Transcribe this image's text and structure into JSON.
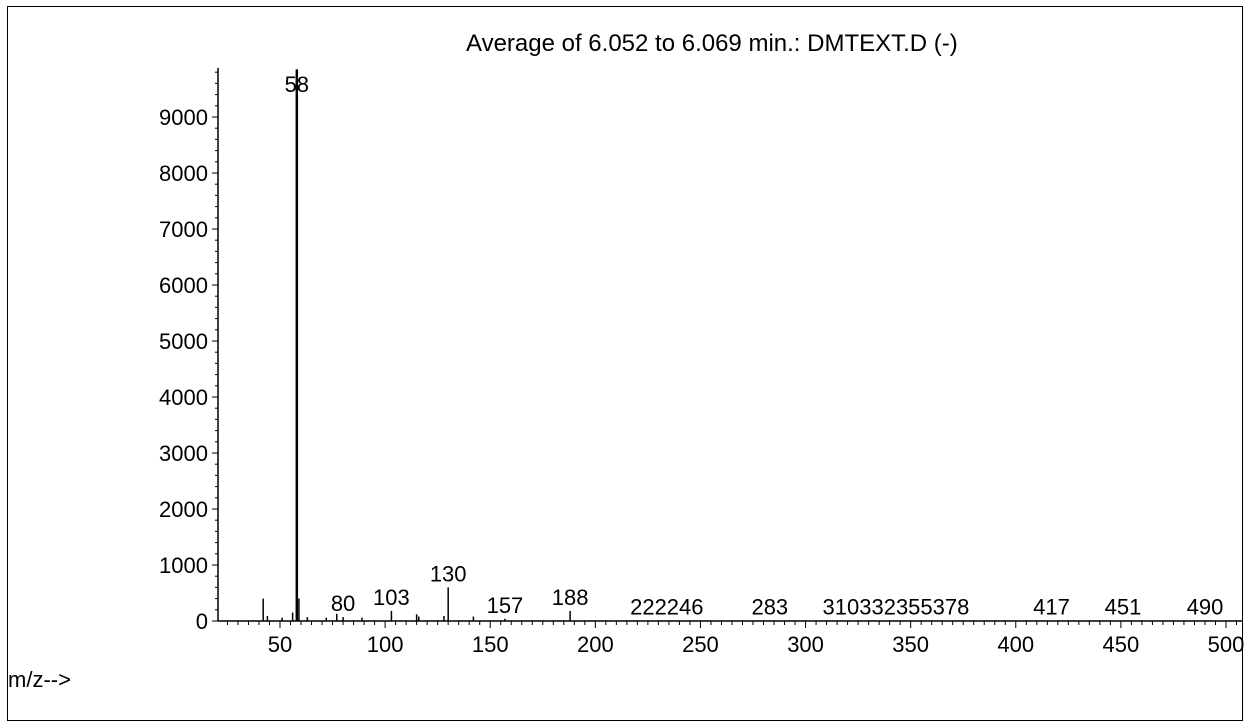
{
  "chart_data": {
    "type": "bar",
    "title": "Average of 6.052 to 6.069 min.: DMTEXT.D (-)",
    "xlabel": "m/z-->",
    "ylabel": "",
    "xlim": [
      22,
      506
    ],
    "ylim": [
      0,
      10000
    ],
    "x_ticks": [
      50,
      100,
      150,
      200,
      250,
      300,
      350,
      400,
      450,
      500
    ],
    "y_ticks": [
      0,
      1000,
      2000,
      3000,
      4000,
      5000,
      6000,
      7000,
      8000,
      9000
    ],
    "x_tick_labels": [
      "50",
      "100",
      "150",
      "200",
      "250",
      "300",
      "350",
      "400",
      "450",
      "500"
    ],
    "y_tick_labels": [
      "0",
      "1000",
      "2000",
      "3000",
      "4000",
      "5000",
      "6000",
      "7000",
      "8000",
      "9000"
    ],
    "peaks": [
      {
        "mz": 42,
        "abundance": 400
      },
      {
        "mz": 44,
        "abundance": 90
      },
      {
        "mz": 51,
        "abundance": 60
      },
      {
        "mz": 56,
        "abundance": 150
      },
      {
        "mz": 58,
        "abundance": 9850
      },
      {
        "mz": 59,
        "abundance": 400
      },
      {
        "mz": 63,
        "abundance": 70
      },
      {
        "mz": 72,
        "abundance": 60
      },
      {
        "mz": 77,
        "abundance": 130
      },
      {
        "mz": 80,
        "abundance": 70
      },
      {
        "mz": 89,
        "abundance": 60
      },
      {
        "mz": 103,
        "abundance": 180
      },
      {
        "mz": 115,
        "abundance": 120
      },
      {
        "mz": 116,
        "abundance": 80
      },
      {
        "mz": 128,
        "abundance": 90
      },
      {
        "mz": 130,
        "abundance": 600
      },
      {
        "mz": 142,
        "abundance": 80
      },
      {
        "mz": 157,
        "abundance": 40
      },
      {
        "mz": 188,
        "abundance": 180
      },
      {
        "mz": 222,
        "abundance": 10
      },
      {
        "mz": 246,
        "abundance": 10
      },
      {
        "mz": 283,
        "abundance": 10
      },
      {
        "mz": 310,
        "abundance": 10
      },
      {
        "mz": 332,
        "abundance": 10
      },
      {
        "mz": 355,
        "abundance": 10
      },
      {
        "mz": 378,
        "abundance": 10
      },
      {
        "mz": 417,
        "abundance": 10
      },
      {
        "mz": 451,
        "abundance": 10
      },
      {
        "mz": 490,
        "abundance": 10
      }
    ],
    "peak_labels": [
      {
        "text": "58",
        "mz": 58,
        "abundance": 9850
      },
      {
        "text": "80",
        "mz": 80,
        "abundance": 70
      },
      {
        "text": "103",
        "mz": 103,
        "abundance": 180
      },
      {
        "text": "130",
        "mz": 130,
        "abundance": 600
      },
      {
        "text": "157",
        "mz": 157,
        "abundance": 40
      },
      {
        "text": "188",
        "mz": 188,
        "abundance": 180
      },
      {
        "text": "222246",
        "mz": 234,
        "abundance": 10
      },
      {
        "text": "283",
        "mz": 283,
        "abundance": 10
      },
      {
        "text": "310332355378",
        "mz": 343,
        "abundance": 10
      },
      {
        "text": "417",
        "mz": 417,
        "abundance": 10
      },
      {
        "text": "451",
        "mz": 451,
        "abundance": 10
      },
      {
        "text": "490",
        "mz": 490,
        "abundance": 10
      }
    ],
    "grid": false,
    "colors": {
      "axis": "#000000",
      "peak": "#000000",
      "background": "#ffffff"
    }
  }
}
